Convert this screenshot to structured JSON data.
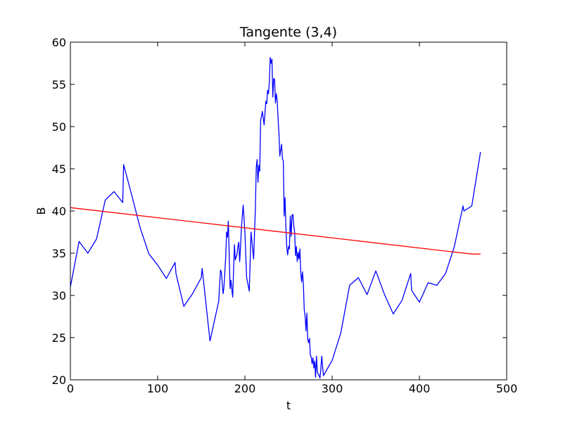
{
  "chart_data": {
    "type": "line",
    "title": "Tangente (3,4)",
    "xlabel": "t",
    "ylabel": "B",
    "xlim": [
      0,
      500
    ],
    "ylim": [
      20,
      60
    ],
    "xticks": [
      0,
      100,
      200,
      300,
      400,
      500
    ],
    "yticks": [
      20,
      25,
      30,
      35,
      40,
      45,
      50,
      55,
      60
    ],
    "grid": false,
    "legend": "none",
    "colors": {
      "series": "#0000ff",
      "tangent": "#ff0000"
    },
    "series": [
      {
        "color": "#0000ff",
        "x": [
          0,
          10,
          20,
          30,
          40,
          50,
          60,
          61,
          70,
          80,
          90,
          100,
          110,
          120,
          121,
          130,
          140,
          150,
          151,
          160,
          170,
          172,
          173,
          175,
          176,
          178,
          179,
          180,
          181,
          183,
          184,
          186,
          188,
          189,
          191,
          192,
          193,
          194,
          195,
          196,
          198,
          200,
          202,
          203,
          205,
          207,
          210,
          212,
          213,
          214,
          215,
          216,
          217,
          218,
          220,
          222,
          224,
          225,
          226,
          227,
          228,
          229,
          230,
          231,
          232,
          233,
          234,
          235,
          236,
          237,
          238,
          239,
          240,
          242,
          243,
          244,
          245,
          246,
          247,
          248,
          249,
          250,
          251,
          252,
          253,
          254,
          255,
          256,
          257,
          258,
          259,
          260,
          261,
          262,
          263,
          264,
          265,
          266,
          267,
          268,
          269,
          270,
          271,
          272,
          273,
          274,
          275,
          276,
          277,
          278,
          279,
          280,
          281,
          282,
          283,
          284,
          285,
          286,
          287,
          288,
          289,
          290,
          300,
          310,
          320,
          330,
          340,
          350,
          360,
          370,
          380,
          390,
          391,
          400,
          410,
          420,
          430,
          440,
          450,
          451,
          460,
          470
        ],
        "y": [
          31,
          36.4,
          35,
          36.7,
          41.3,
          42.3,
          41,
          45.5,
          42,
          38,
          34.9,
          33.6,
          32,
          33.9,
          32.6,
          28.7,
          30.2,
          32.1,
          33.2,
          24.6,
          29.3,
          33,
          32.8,
          30.2,
          31,
          34.5,
          37.5,
          36.9,
          38.8,
          30.8,
          31.8,
          29.8,
          36,
          34.2,
          34.9,
          35.8,
          36.3,
          34,
          35.7,
          38,
          40.7,
          37.5,
          32.1,
          31.6,
          30.5,
          37.5,
          34.3,
          40.3,
          45.1,
          46.1,
          43.4,
          45.4,
          44.7,
          50.7,
          51.8,
          50.2,
          53,
          52.7,
          54.3,
          53.9,
          55.2,
          58.2,
          57.5,
          58,
          53.5,
          55.7,
          55.6,
          52.8,
          53.9,
          53.1,
          51,
          49.2,
          46.5,
          47.9,
          46.2,
          45.9,
          39.4,
          41.6,
          38,
          35.7,
          34.8,
          35.8,
          35.5,
          39.4,
          37,
          39.5,
          39.6,
          38.2,
          37.5,
          34.7,
          35.8,
          34,
          35.1,
          34.3,
          35.5,
          32.7,
          31.6,
          32.8,
          31.3,
          28.3,
          27.5,
          25.8,
          27.9,
          24.8,
          24.4,
          24.9,
          22.9,
          22.7,
          21.9,
          22.6,
          21.4,
          22.2,
          20.3,
          22.8,
          20.9,
          20.7,
          20.5,
          20.2,
          21.2,
          22.8,
          21.6,
          20.5,
          22.3,
          25.6,
          31.2,
          32.1,
          30.1,
          32.9,
          30.1,
          27.8,
          29.4,
          32.6,
          30.6,
          29.2,
          31.5,
          31.2,
          32.6,
          35.8,
          40.6,
          40,
          40.6,
          47
        ]
      },
      {
        "color": "#ff0000",
        "x": [
          0,
          460,
          470
        ],
        "y": [
          40.4,
          34.9,
          34.9
        ]
      }
    ]
  }
}
